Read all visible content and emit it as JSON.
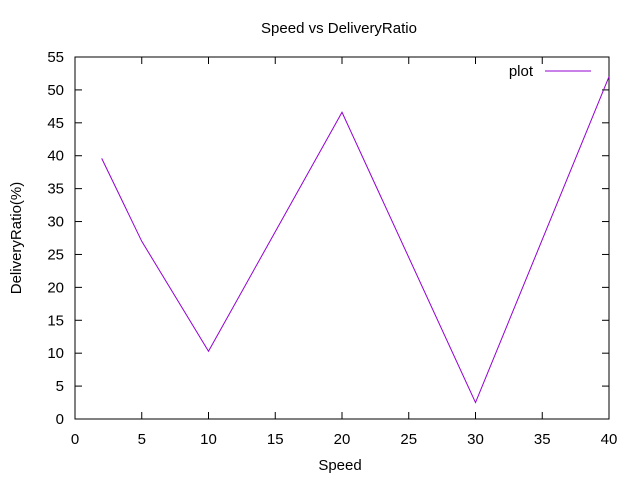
{
  "chart_data": {
    "type": "line",
    "title": "Speed vs DeliveryRatio",
    "xlabel": "Speed",
    "ylabel": "DeliveryRatio(%)",
    "xlim": [
      0,
      40
    ],
    "ylim": [
      0,
      55
    ],
    "xticks": [
      "0",
      "5",
      "10",
      "15",
      "20",
      "25",
      "30",
      "35",
      "40"
    ],
    "yticks": [
      "0",
      "5",
      "10",
      "15",
      "20",
      "25",
      "30",
      "35",
      "40",
      "45",
      "50",
      "55"
    ],
    "grid": false,
    "legend_position": "top-right",
    "series": [
      {
        "name": "plot",
        "color": "#9400d3",
        "x": [
          2,
          5,
          10,
          20,
          30,
          40
        ],
        "y": [
          39.6,
          27,
          10.3,
          46.6,
          2.5,
          52
        ]
      }
    ]
  }
}
